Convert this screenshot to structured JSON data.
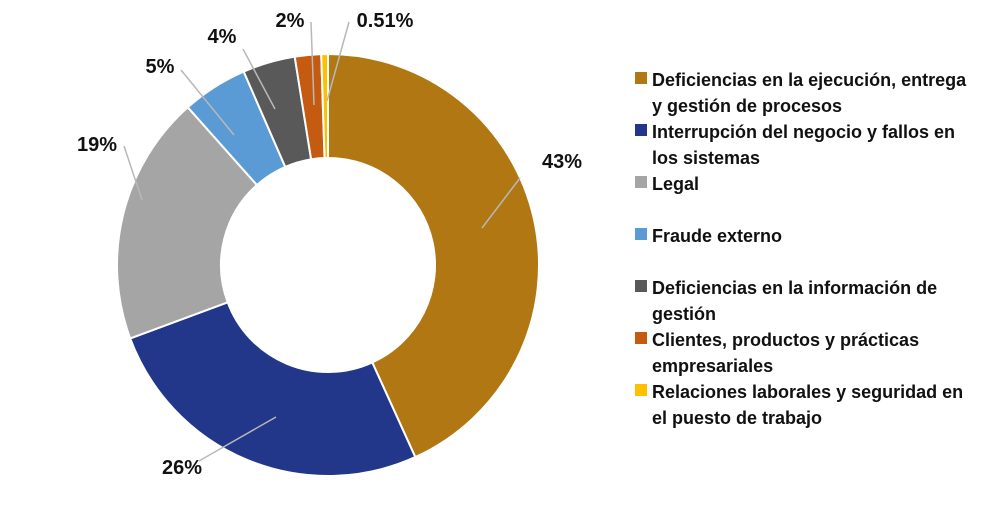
{
  "chart_data": {
    "type": "pie",
    "variant": "donut",
    "title": "",
    "labels": [
      "Deficiencias en la ejecución, entrega y gestión de procesos",
      "Interrupción del negocio y fallos en los sistemas",
      "Legal",
      "Fraude externo",
      "Deficiencias en la información de gestión",
      "Clientes, productos y prácticas empresariales",
      "Relaciones laborales y seguridad en el puesto de trabajo"
    ],
    "legend_lines": [
      [
        "Deficiencias en la ejecución, entrega",
        "y gestión de procesos"
      ],
      [
        "Interrupción del negocio y fallos en",
        "los sistemas"
      ],
      [
        "Legal"
      ],
      [
        "Fraude externo"
      ],
      [
        "Deficiencias en la información de",
        "gestión"
      ],
      [
        "Clientes, productos y prácticas",
        "empresariales"
      ],
      [
        "Relaciones laborales y seguridad en",
        "el puesto de trabajo"
      ]
    ],
    "values": [
      43,
      26,
      19,
      5,
      4,
      2,
      0.51
    ],
    "data_labels": [
      "43%",
      "26%",
      "19%",
      "5%",
      "4%",
      "2%",
      "0.51%"
    ],
    "colors": [
      "#B07712",
      "#22368A",
      "#A5A5A5",
      "#5B9BD5",
      "#595959",
      "#C55A11",
      "#FFC000"
    ],
    "start_angle_deg": 0,
    "direction": "clockwise",
    "legend_position": "right",
    "show_percent": true
  }
}
